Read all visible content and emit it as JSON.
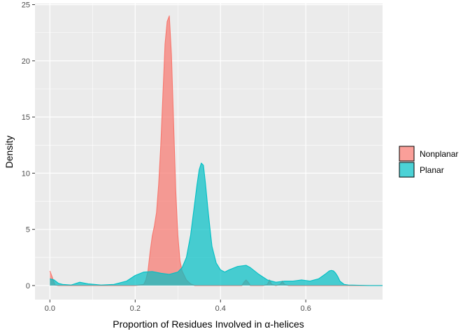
{
  "chart_data": {
    "type": "area",
    "subtype": "density",
    "title": "",
    "xlabel": "Proportion of Residues Involved in α-helices",
    "ylabel": "Density",
    "xlim": [
      -0.035,
      0.78
    ],
    "ylim": [
      -1.25,
      25.1
    ],
    "x_ticks": [
      0.0,
      0.2,
      0.4,
      0.6
    ],
    "x_tick_labels": [
      "0.0",
      "0.2",
      "0.4",
      "0.6"
    ],
    "y_ticks": [
      0,
      5,
      10,
      15,
      20,
      25
    ],
    "y_tick_labels": [
      "0",
      "5",
      "10",
      "15",
      "20",
      "25"
    ],
    "grid": true,
    "background": "#ebebeb",
    "legend_position": "right",
    "series": [
      {
        "name": "Nonplanar",
        "color": "#f8766d",
        "fill_opacity": 0.7,
        "x": [
          0.0,
          0.005,
          0.012,
          0.02,
          0.03,
          0.1,
          0.2,
          0.22,
          0.225,
          0.23,
          0.235,
          0.24,
          0.245,
          0.25,
          0.255,
          0.26,
          0.265,
          0.27,
          0.275,
          0.28,
          0.285,
          0.29,
          0.295,
          0.3,
          0.305,
          0.31,
          0.315,
          0.32,
          0.33,
          0.34,
          0.35,
          0.36,
          0.45,
          0.455,
          0.46,
          0.465,
          0.47,
          0.5,
          0.51,
          0.515,
          0.52,
          0.53,
          0.54,
          0.545,
          0.55,
          0.56,
          0.78
        ],
        "y": [
          1.3,
          0.8,
          0.05,
          0.0,
          0.0,
          0.0,
          0.0,
          0.1,
          0.5,
          1.3,
          3.0,
          4.4,
          5.3,
          6.5,
          9.0,
          12.5,
          17.0,
          21.5,
          23.5,
          24.0,
          20.5,
          14.5,
          8.5,
          4.5,
          2.2,
          1.3,
          0.9,
          0.5,
          0.15,
          0.0,
          0.0,
          0.0,
          0.0,
          0.3,
          0.5,
          0.3,
          0.0,
          0.0,
          0.1,
          0.5,
          0.1,
          0.0,
          0.1,
          0.4,
          0.1,
          0.0,
          0.0
        ]
      },
      {
        "name": "Planar",
        "color": "#00bfc4",
        "fill_opacity": 0.7,
        "x": [
          0.0,
          0.01,
          0.02,
          0.03,
          0.05,
          0.07,
          0.09,
          0.12,
          0.15,
          0.18,
          0.2,
          0.22,
          0.24,
          0.26,
          0.28,
          0.3,
          0.31,
          0.32,
          0.33,
          0.335,
          0.34,
          0.345,
          0.35,
          0.355,
          0.36,
          0.365,
          0.37,
          0.375,
          0.38,
          0.39,
          0.4,
          0.41,
          0.42,
          0.44,
          0.46,
          0.47,
          0.49,
          0.51,
          0.53,
          0.55,
          0.57,
          0.59,
          0.61,
          0.63,
          0.645,
          0.655,
          0.66,
          0.665,
          0.67,
          0.675,
          0.68,
          0.69,
          0.7,
          0.75,
          0.78
        ],
        "y": [
          0.6,
          0.5,
          0.2,
          0.1,
          0.05,
          0.3,
          0.15,
          0.05,
          0.1,
          0.4,
          0.9,
          1.2,
          1.25,
          1.1,
          1.0,
          1.2,
          1.6,
          2.5,
          4.5,
          6.0,
          7.5,
          9.0,
          10.3,
          10.9,
          10.7,
          9.0,
          7.0,
          5.2,
          3.5,
          2.0,
          1.4,
          1.2,
          1.4,
          1.7,
          1.8,
          1.6,
          1.0,
          0.5,
          0.3,
          0.4,
          0.4,
          0.5,
          0.4,
          0.6,
          1.0,
          1.3,
          1.35,
          1.3,
          1.1,
          0.8,
          0.4,
          0.1,
          0.05,
          0.0,
          0.0
        ]
      }
    ]
  }
}
